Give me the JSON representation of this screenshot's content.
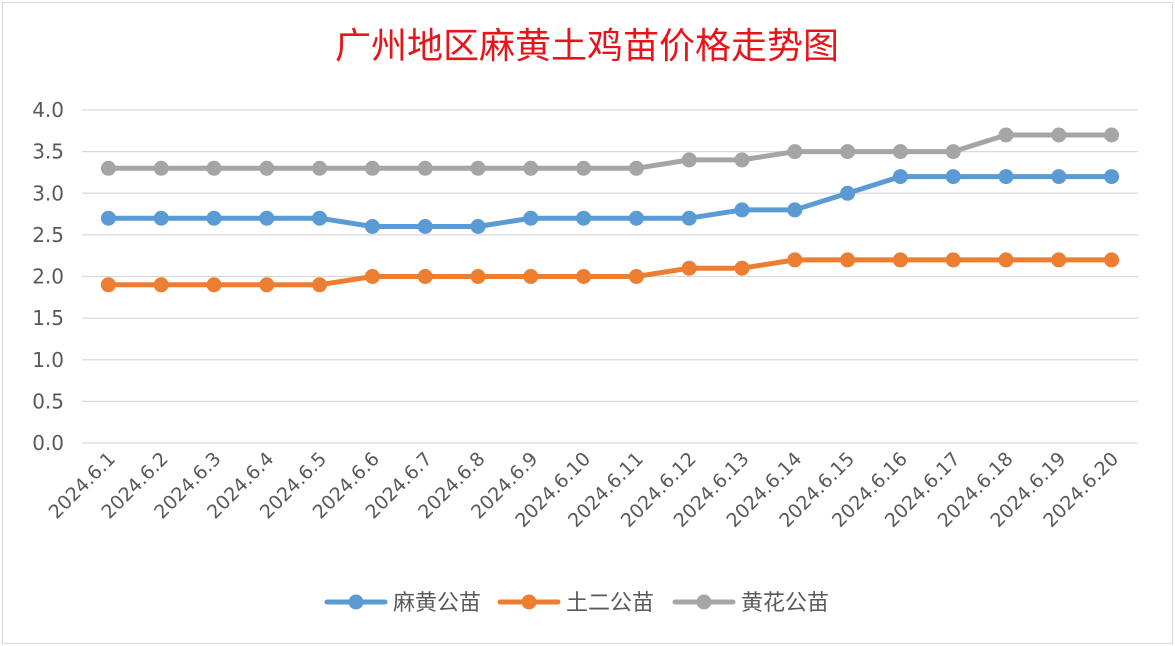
{
  "chart_data": {
    "type": "line",
    "title": "广州地区麻黄土鸡苗价格走势图",
    "xlabel": "",
    "ylabel": "",
    "ylim": [
      0,
      4
    ],
    "yticks": [
      "0.0",
      "0.5",
      "1.0",
      "1.5",
      "2.0",
      "2.5",
      "3.0",
      "3.5",
      "4.0"
    ],
    "grid": true,
    "legend_position": "bottom",
    "categories": [
      "2024.6.1",
      "2024.6.2",
      "2024.6.3",
      "2024.6.4",
      "2024.6.5",
      "2024.6.6",
      "2024.6.7",
      "2024.6.8",
      "2024.6.9",
      "2024.6.10",
      "2024.6.11",
      "2024.6.12",
      "2024.6.13",
      "2024.6.14",
      "2024.6.15",
      "2024.6.16",
      "2024.6.17",
      "2024.6.18",
      "2024.6.19",
      "2024.6.20"
    ],
    "series": [
      {
        "name": "麻黄公苗",
        "color": "#5b9bd5",
        "values": [
          2.7,
          2.7,
          2.7,
          2.7,
          2.7,
          2.6,
          2.6,
          2.6,
          2.7,
          2.7,
          2.7,
          2.7,
          2.8,
          2.8,
          3.0,
          3.2,
          3.2,
          3.2,
          3.2,
          3.2
        ]
      },
      {
        "name": "土二公苗",
        "color": "#ed7d31",
        "values": [
          1.9,
          1.9,
          1.9,
          1.9,
          1.9,
          2.0,
          2.0,
          2.0,
          2.0,
          2.0,
          2.0,
          2.1,
          2.1,
          2.2,
          2.2,
          2.2,
          2.2,
          2.2,
          2.2,
          2.2
        ]
      },
      {
        "name": "黄花公苗",
        "color": "#a5a5a5",
        "values": [
          3.3,
          3.3,
          3.3,
          3.3,
          3.3,
          3.3,
          3.3,
          3.3,
          3.3,
          3.3,
          3.3,
          3.4,
          3.4,
          3.5,
          3.5,
          3.5,
          3.5,
          3.7,
          3.7,
          3.7
        ]
      }
    ]
  }
}
